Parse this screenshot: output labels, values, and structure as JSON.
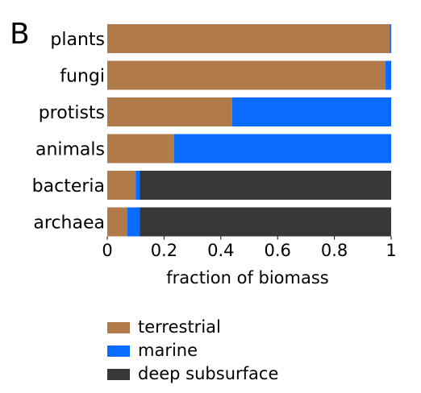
{
  "panel_label": "B",
  "colors": {
    "terrestrial": "#b07a4a",
    "marine": "#0a6cff",
    "deep_subsurface": "#373737"
  },
  "chart_data": {
    "type": "bar",
    "orientation": "horizontal",
    "stacked": true,
    "categories": [
      "plants",
      "fungi",
      "protists",
      "animals",
      "bacteria",
      "archaea"
    ],
    "series": [
      {
        "name": "terrestrial",
        "values": [
          0.995,
          0.98,
          0.44,
          0.235,
          0.1,
          0.07
        ]
      },
      {
        "name": "marine",
        "values": [
          0.005,
          0.02,
          0.56,
          0.765,
          0.015,
          0.045
        ]
      },
      {
        "name": "deep subsurface",
        "values": [
          0,
          0,
          0,
          0,
          0.885,
          0.885
        ]
      }
    ],
    "xlabel": "fraction of biomass",
    "ylabel": "",
    "xlim": [
      0,
      1
    ],
    "xticks": [
      0,
      0.2,
      0.4,
      0.6,
      0.8,
      1
    ],
    "xtick_labels": [
      "0",
      "0.2",
      "0.4",
      "0.6",
      "0.8",
      "1"
    ],
    "legend_position": "bottom"
  }
}
